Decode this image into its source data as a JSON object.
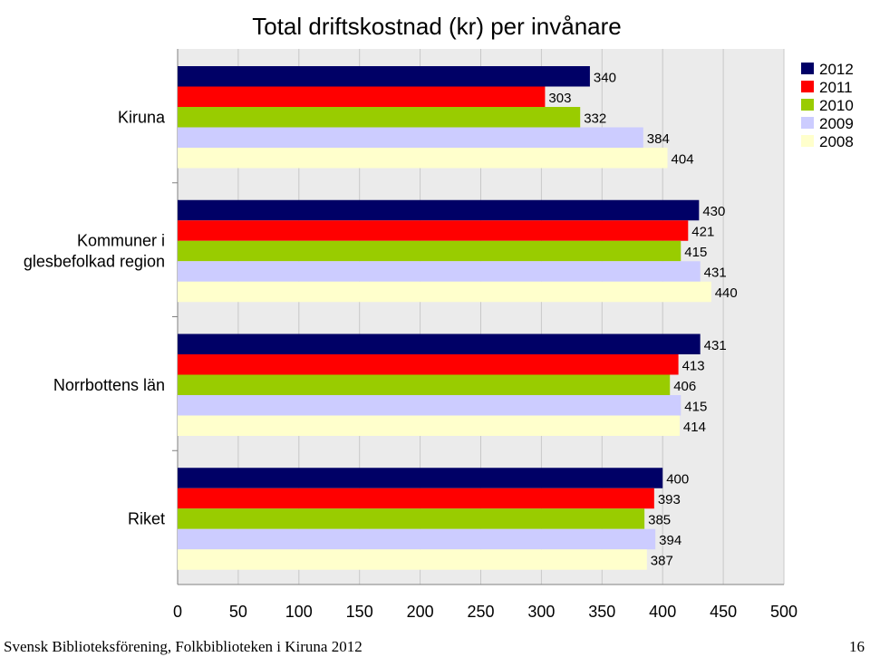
{
  "colors": {
    "plot_background": "#ebebeb",
    "gridline": "#c8c8c8",
    "series": [
      "#000066",
      "#ff0000",
      "#99cc00",
      "#ccccff",
      "#ffffcc"
    ]
  },
  "footer": {
    "left": "Svensk Biblioteksförening, Folkbiblioteken i Kiruna 2012",
    "page_number": "16"
  },
  "chart_data": {
    "type": "bar",
    "orientation": "horizontal",
    "title": "Total driftskostnad (kr) per invånare",
    "categories": [
      "Kiruna",
      "Kommuner i glesbefolkad region",
      "Norrbottens län",
      "Riket"
    ],
    "series": [
      {
        "name": "2012",
        "values": [
          340,
          430,
          431,
          400
        ]
      },
      {
        "name": "2011",
        "values": [
          303,
          421,
          413,
          393
        ]
      },
      {
        "name": "2010",
        "values": [
          332,
          415,
          406,
          385
        ]
      },
      {
        "name": "2009",
        "values": [
          384,
          431,
          415,
          394
        ]
      },
      {
        "name": "2008",
        "values": [
          404,
          440,
          414,
          387
        ]
      }
    ],
    "xlim": [
      0,
      500
    ],
    "x_ticks": [
      "0",
      "50",
      "100",
      "150",
      "200",
      "250",
      "300",
      "350",
      "400",
      "450",
      "500"
    ],
    "grid": true,
    "legend_position": "top-right",
    "data_labels": true
  }
}
